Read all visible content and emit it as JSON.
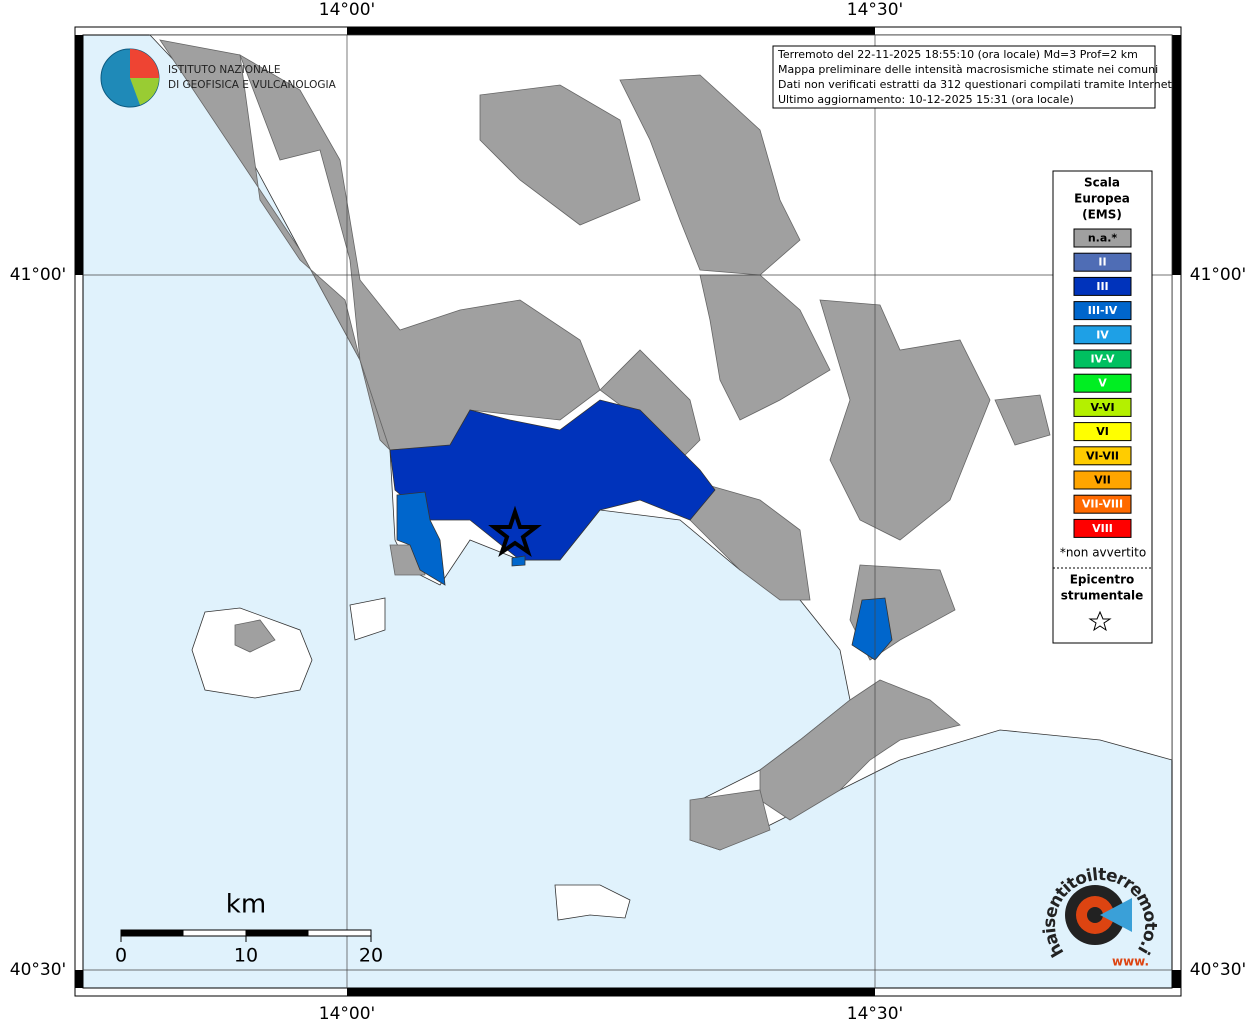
{
  "map": {
    "lon_ticks": [
      {
        "value": 14.0,
        "label": "14°00'"
      },
      {
        "value": 14.5,
        "label": "14°30'"
      }
    ],
    "lat_ticks": [
      {
        "value": 41.0,
        "label": "41°00'"
      },
      {
        "value": 40.5,
        "label": "40°30'"
      }
    ]
  },
  "logo": {
    "line1": "ISTITUTO NAZIONALE",
    "line2": "DI GEOFISICA E VULCANOLOGIA"
  },
  "info": {
    "lines": [
      "Terremoto del 22-11-2025 18:55:10 (ora locale) Md=3 Prof=2 km",
      "Mappa preliminare delle intensità macrosismiche stimate nei comuni",
      "Dati non verificati estratti da 312 questionari compilati tramite Internet.",
      "Ultimo aggiornamento: 10-12-2025 15:31 (ora locale)"
    ]
  },
  "legend": {
    "title": [
      "Scala",
      "Europea",
      "(EMS)"
    ],
    "items": [
      {
        "label": "n.a.*",
        "color": "#a0a0a0"
      },
      {
        "label": "II",
        "color": "#4f6db5"
      },
      {
        "label": "III",
        "color": "#0033bb"
      },
      {
        "label": "III-IV",
        "color": "#0066cc"
      },
      {
        "label": "IV",
        "color": "#1ea0e6"
      },
      {
        "label": "IV-V",
        "color": "#00c060"
      },
      {
        "label": "V",
        "color": "#00ee22"
      },
      {
        "label": "V-VI",
        "color": "#b4f000"
      },
      {
        "label": "VI",
        "color": "#ffff00"
      },
      {
        "label": "VI-VII",
        "color": "#ffcc00"
      },
      {
        "label": "VII",
        "color": "#ffa500"
      },
      {
        "label": "VII-VIII",
        "color": "#ff6a00"
      },
      {
        "label": "VIII",
        "color": "#ff0000"
      }
    ],
    "note": "*non avvertito",
    "epicenter_title": [
      "Epicentro",
      "strumentale"
    ]
  },
  "scale_bar": {
    "unit": "km",
    "ticks": [
      0,
      10,
      20
    ]
  },
  "site_logo": {
    "name": "haisentitoilterremoto.it",
    "prefix": "www."
  }
}
